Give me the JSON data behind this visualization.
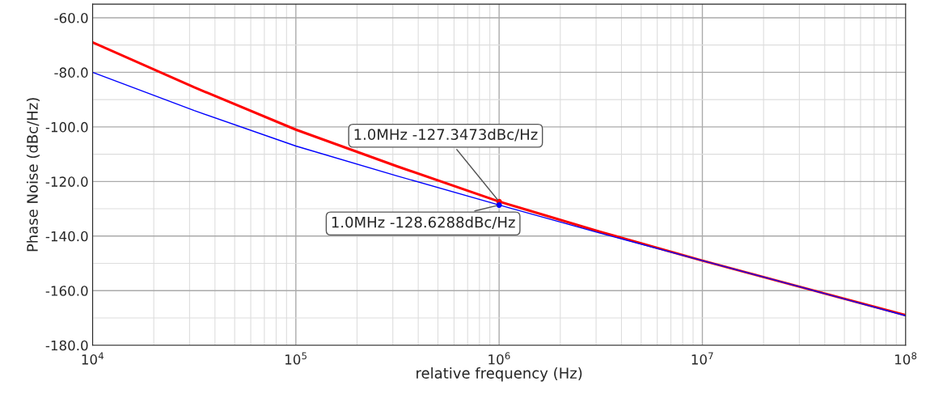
{
  "chart_data": {
    "type": "line",
    "xlabel": "relative frequency (Hz)",
    "ylabel": "Phase Noise (dBc/Hz)",
    "log": "x",
    "grid": true,
    "x": [
      10000,
      31623,
      100000,
      316228,
      1000000,
      3162278,
      10000000,
      31622777,
      100000000
    ],
    "series": [
      {
        "color": "#ff0000",
        "values": [
          -69,
          -85.5,
          -101,
          -114.5,
          -127.3473,
          -138.5,
          -149,
          -159,
          -169
        ]
      },
      {
        "color": "#0000ff",
        "values": [
          -80,
          -94,
          -107,
          -118,
          -128.6288,
          -139,
          -149,
          -159,
          -169.2
        ]
      }
    ],
    "xlim": [
      10000,
      100000000
    ],
    "xticks": [
      {
        "value": 10000,
        "label": "10$^{4}$"
      },
      {
        "value": 100000,
        "label": "10$^{5}$"
      },
      {
        "value": 1000000,
        "label": "10$^{6}$"
      },
      {
        "value": 10000000,
        "label": "10$^{7}$"
      },
      {
        "value": 100000000,
        "label": "10$^{8}$"
      }
    ],
    "ylim": [
      -180,
      -55
    ],
    "yticks": [
      {
        "value": -180,
        "label": "-180.0"
      },
      {
        "value": -160,
        "label": "-160.0"
      },
      {
        "value": -140,
        "label": "-140.0"
      },
      {
        "value": -120,
        "label": "-120.0"
      },
      {
        "value": -100,
        "label": "-100.0"
      },
      {
        "value": -80,
        "label": "-80.0"
      },
      {
        "value": -60,
        "label": "-60.0"
      }
    ],
    "annotations": [
      {
        "text": "1.0MHz -127.3473dBc/Hz",
        "x": 1000000,
        "y": -127.3473
      },
      {
        "text": "1.0MHz -128.6288dBc/Hz",
        "x": 1000000,
        "y": -128.6288
      }
    ]
  }
}
